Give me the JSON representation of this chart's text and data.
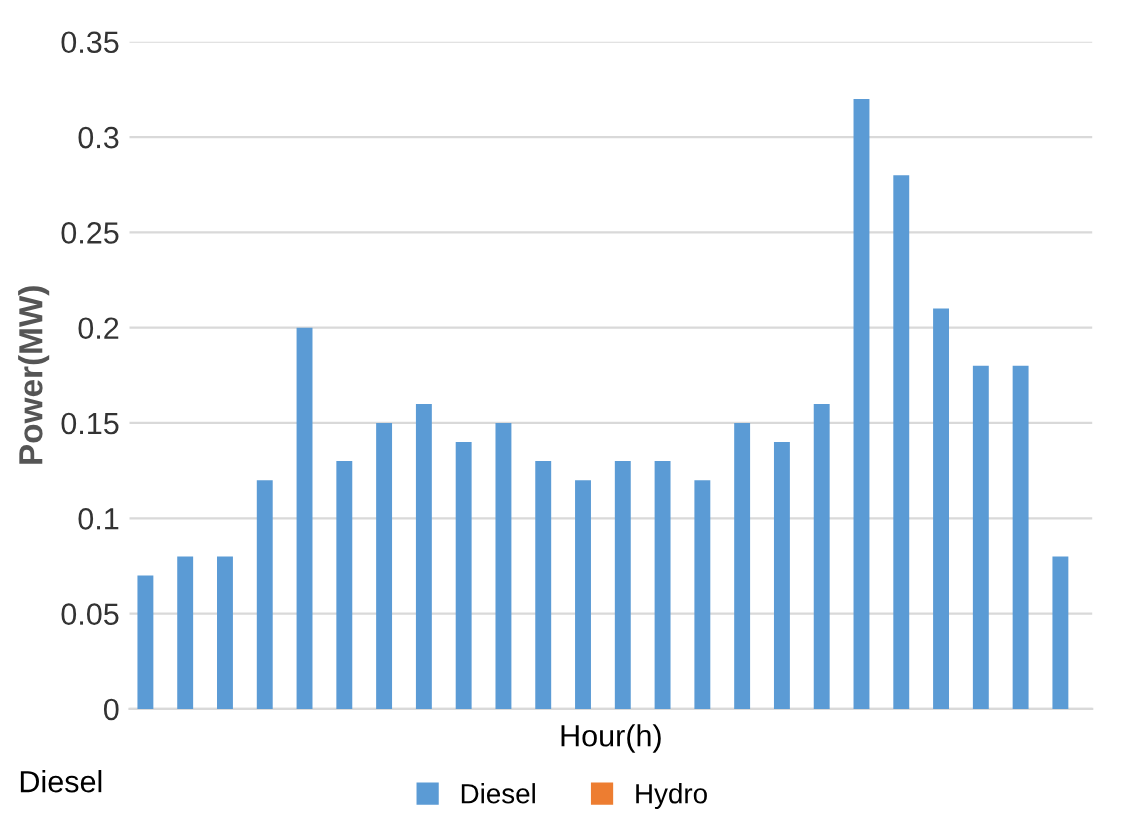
{
  "chart_data": {
    "type": "bar",
    "xlabel": "Hour(h)",
    "ylabel": "Power(MW)",
    "categories": [
      null,
      null,
      null,
      null,
      null,
      null,
      null,
      null,
      null,
      null,
      null,
      null,
      null,
      null,
      null,
      null,
      null,
      null,
      null,
      null,
      null,
      null,
      null,
      null
    ],
    "series": [
      {
        "name": "Diesel",
        "color": "#5b9bd5",
        "values": [
          0.07,
          0.08,
          0.08,
          0.12,
          0.2,
          0.13,
          0.15,
          0.16,
          0.14,
          0.15,
          0.13,
          0.12,
          0.13,
          0.13,
          0.12,
          0.15,
          0.14,
          0.16,
          0.32,
          0.28,
          0.21,
          0.18,
          0.18,
          0.08
        ]
      },
      {
        "name": "Hydro",
        "color": "#ed7d31",
        "values": [
          0,
          0,
          0,
          0,
          0,
          0,
          0,
          0,
          0,
          0,
          0,
          0,
          0,
          0,
          0,
          0,
          0,
          0,
          0,
          0,
          0,
          0,
          0,
          0
        ]
      }
    ],
    "ylim": [
      0,
      0.35
    ],
    "yticks": [
      0,
      0.05,
      0.1,
      0.15,
      0.2,
      0.25,
      0.3,
      0.35
    ],
    "annotations": [
      "Diesel"
    ],
    "grid": "y",
    "legend": "bottom"
  }
}
